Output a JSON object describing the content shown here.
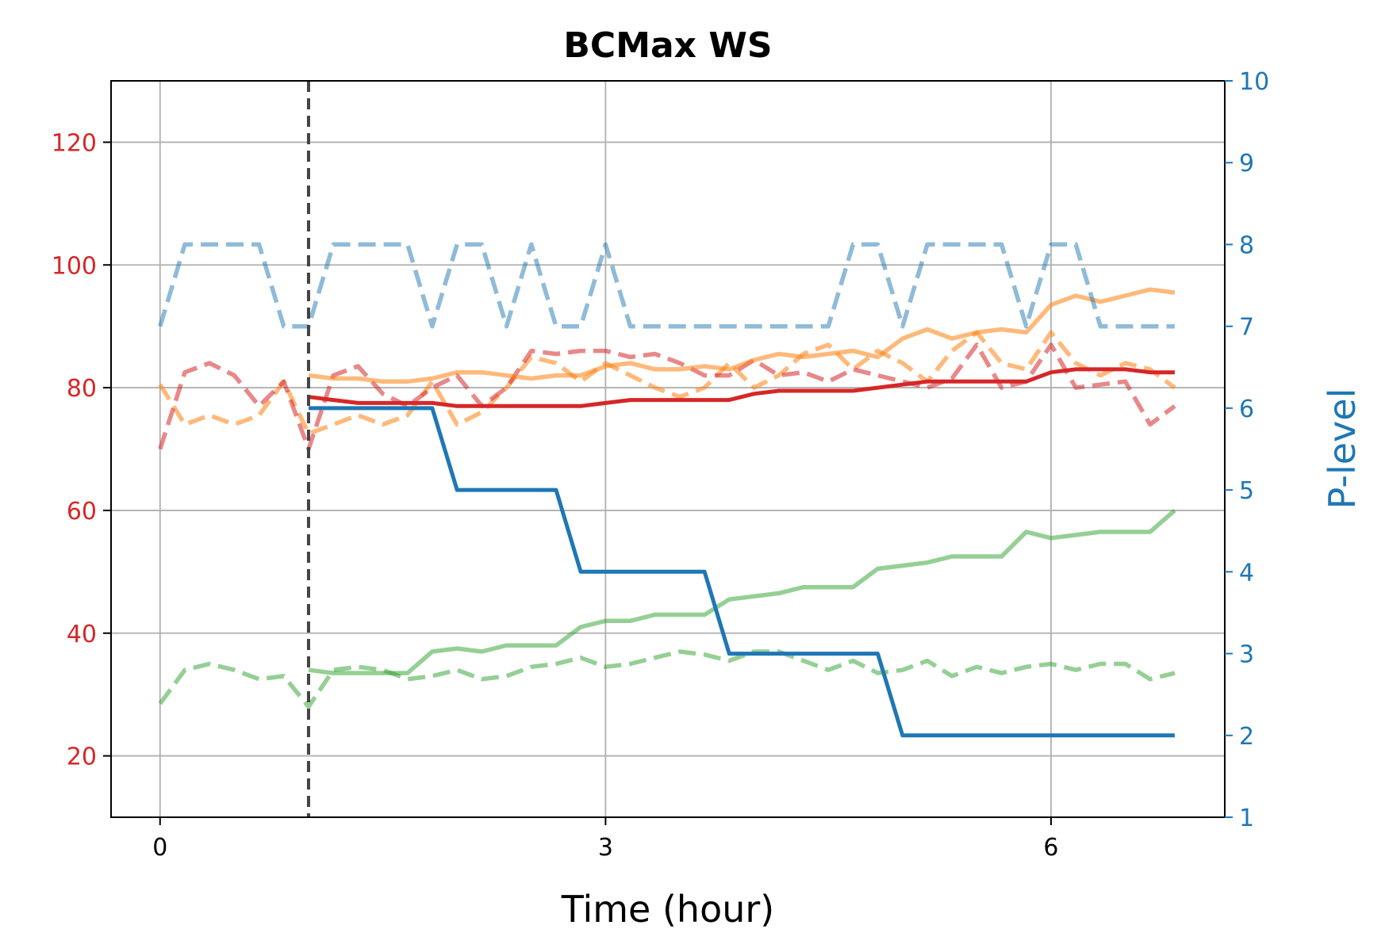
{
  "chart_data": {
    "type": "line",
    "title": "BCMax WS",
    "xlabel": "Time (hour)",
    "ylabel_left": "",
    "ylabel_right": "P-level",
    "xlim": [
      -0.33,
      7.17
    ],
    "ylim_left": [
      10,
      130
    ],
    "ylim_right": [
      1,
      10
    ],
    "x_ticks": [
      0,
      3,
      6
    ],
    "y_ticks_left": [
      20,
      40,
      60,
      80,
      100,
      120
    ],
    "y_ticks_right": [
      1,
      2,
      3,
      4,
      5,
      6,
      7,
      8,
      9,
      10
    ],
    "grid": true,
    "legend": "none",
    "colors": {
      "left_axis": "#d62728",
      "right_axis": "#1f77b4",
      "red": "#d62728",
      "orange": "#ff7f0e",
      "green": "#2ca02c",
      "blue": "#1f77b4",
      "vline": "#444444"
    },
    "vline_x": 1.0,
    "series": [
      {
        "axis": "left",
        "color": "#ff7f0e",
        "style": "dashed",
        "alpha": 0.55,
        "x": [
          0,
          0.167,
          0.333,
          0.5,
          0.667,
          0.833,
          1.0,
          1.167,
          1.333,
          1.5,
          1.667,
          1.833,
          2.0,
          2.167,
          2.333,
          2.5,
          2.667,
          2.833,
          3.0,
          3.167,
          3.333,
          3.5,
          3.667,
          3.833,
          4.0,
          4.167,
          4.333,
          4.5,
          4.667,
          4.833,
          5.0,
          5.167,
          5.333,
          5.5,
          5.667,
          5.833,
          6.0,
          6.167,
          6.333,
          6.5,
          6.667,
          6.833
        ],
        "y": [
          80.5,
          74,
          75.5,
          74,
          75.5,
          81,
          72.5,
          74,
          75.5,
          74,
          75.5,
          81,
          74,
          76,
          80,
          85,
          84,
          81,
          84,
          82,
          80,
          78.5,
          80,
          84,
          80,
          82,
          85.5,
          87,
          83,
          86,
          84,
          81,
          86,
          89,
          84,
          83,
          89,
          84,
          82,
          84,
          83,
          80
        ]
      },
      {
        "axis": "left",
        "color": "#d62728",
        "style": "dashed",
        "alpha": 0.55,
        "x": [
          0,
          0.167,
          0.333,
          0.5,
          0.667,
          0.833,
          1.0,
          1.167,
          1.333,
          1.5,
          1.667,
          1.833,
          2.0,
          2.167,
          2.333,
          2.5,
          2.667,
          2.833,
          3.0,
          3.167,
          3.333,
          3.5,
          3.667,
          3.833,
          4.0,
          4.167,
          4.333,
          4.5,
          4.667,
          4.833,
          5.0,
          5.167,
          5.333,
          5.5,
          5.667,
          5.833,
          6.0,
          6.167,
          6.333,
          6.5,
          6.667,
          6.833
        ],
        "y": [
          70,
          82.5,
          84,
          82,
          77,
          81,
          70,
          82,
          83.5,
          79,
          77,
          80,
          82,
          77,
          80,
          86,
          85.5,
          86,
          86,
          85,
          85.5,
          84,
          82,
          82,
          84.5,
          82,
          82.5,
          81,
          83,
          82,
          81,
          80,
          81.5,
          87,
          80,
          81,
          87,
          80,
          80.5,
          81,
          74,
          77
        ]
      },
      {
        "axis": "left",
        "color": "#ff7f0e",
        "style": "solid",
        "alpha": 0.55,
        "x": [
          1.0,
          1.167,
          1.333,
          1.5,
          1.667,
          1.833,
          2.0,
          2.167,
          2.333,
          2.5,
          2.667,
          2.833,
          3.0,
          3.167,
          3.333,
          3.5,
          3.667,
          3.833,
          4.0,
          4.167,
          4.333,
          4.5,
          4.667,
          4.833,
          5.0,
          5.167,
          5.333,
          5.5,
          5.667,
          5.833,
          6.0,
          6.167,
          6.333,
          6.5,
          6.667,
          6.833
        ],
        "y": [
          82,
          81.5,
          81.5,
          81,
          81,
          81.5,
          82.5,
          82.5,
          82,
          81.5,
          82,
          82,
          83.5,
          84,
          83,
          83,
          83.5,
          83,
          84.5,
          85.5,
          85,
          85.5,
          86,
          85,
          88,
          89.5,
          88,
          89,
          89.5,
          89,
          93.5,
          95,
          94,
          95,
          96,
          95.5
        ]
      },
      {
        "axis": "left",
        "color": "#d62728",
        "style": "solid",
        "alpha": 1.0,
        "x": [
          1.0,
          1.167,
          1.333,
          1.5,
          1.667,
          1.833,
          2.0,
          2.167,
          2.333,
          2.5,
          2.667,
          2.833,
          3.0,
          3.167,
          3.333,
          3.5,
          3.667,
          3.833,
          4.0,
          4.167,
          4.333,
          4.5,
          4.667,
          4.833,
          5.0,
          5.167,
          5.333,
          5.5,
          5.667,
          5.833,
          6.0,
          6.167,
          6.333,
          6.5,
          6.667,
          6.833
        ],
        "y": [
          78.5,
          78,
          77.5,
          77.5,
          77.5,
          77.5,
          77,
          77,
          77,
          77,
          77,
          77,
          77.5,
          78,
          78,
          78,
          78,
          78,
          79,
          79.5,
          79.5,
          79.5,
          79.5,
          80,
          80.5,
          81,
          81,
          81,
          81,
          81,
          82.5,
          83,
          83,
          83,
          82.5,
          82.5
        ]
      },
      {
        "axis": "left",
        "color": "#2ca02c",
        "style": "dashed",
        "alpha": 0.5,
        "x": [
          0,
          0.167,
          0.333,
          0.5,
          0.667,
          0.833,
          1.0,
          1.167,
          1.333,
          1.5,
          1.667,
          1.833,
          2.0,
          2.167,
          2.333,
          2.5,
          2.667,
          2.833,
          3.0,
          3.167,
          3.333,
          3.5,
          3.667,
          3.833,
          4.0,
          4.167,
          4.333,
          4.5,
          4.667,
          4.833,
          5.0,
          5.167,
          5.333,
          5.5,
          5.667,
          5.833,
          6.0,
          6.167,
          6.333,
          6.5,
          6.667,
          6.833
        ],
        "y": [
          28.5,
          34,
          35,
          34,
          32.5,
          33,
          28,
          34,
          34.5,
          34,
          32.5,
          33,
          34,
          32.5,
          33,
          34.5,
          35,
          36,
          34.5,
          35,
          36,
          37,
          36.5,
          35.5,
          37,
          37,
          35.5,
          34,
          35.5,
          33.5,
          34,
          35.5,
          33,
          34.5,
          33.5,
          34.5,
          35,
          34,
          35,
          35,
          32.5,
          33.5
        ]
      },
      {
        "axis": "left",
        "color": "#2ca02c",
        "style": "solid",
        "alpha": 0.5,
        "x": [
          1.0,
          1.167,
          1.333,
          1.5,
          1.667,
          1.833,
          2.0,
          2.167,
          2.333,
          2.5,
          2.667,
          2.833,
          3.0,
          3.167,
          3.333,
          3.5,
          3.667,
          3.833,
          4.0,
          4.167,
          4.333,
          4.5,
          4.667,
          4.833,
          5.0,
          5.167,
          5.333,
          5.5,
          5.667,
          5.833,
          6.0,
          6.167,
          6.333,
          6.5,
          6.667,
          6.833
        ],
        "y": [
          34,
          33.5,
          33.5,
          33.5,
          33.5,
          37,
          37.5,
          37,
          38,
          38,
          38,
          41,
          42,
          42,
          43,
          43,
          43,
          45.5,
          46,
          46.5,
          47.5,
          47.5,
          47.5,
          50.5,
          51,
          51.5,
          52.5,
          52.5,
          52.5,
          56.5,
          55.5,
          56,
          56.5,
          56.5,
          56.5,
          60
        ]
      },
      {
        "axis": "right",
        "color": "#1f77b4",
        "style": "dashed",
        "alpha": 0.5,
        "x": [
          0,
          0.167,
          0.333,
          0.5,
          0.667,
          0.833,
          1.0,
          1.167,
          1.333,
          1.5,
          1.667,
          1.833,
          2.0,
          2.167,
          2.333,
          2.5,
          2.667,
          2.833,
          3.0,
          3.167,
          3.333,
          3.5,
          3.667,
          3.833,
          4.0,
          4.167,
          4.333,
          4.5,
          4.667,
          4.833,
          5.0,
          5.167,
          5.333,
          5.5,
          5.667,
          5.833,
          6.0,
          6.167,
          6.333,
          6.5,
          6.667,
          6.833
        ],
        "y": [
          7,
          8,
          8,
          8,
          8,
          7,
          7,
          8,
          8,
          8,
          8,
          7,
          8,
          8,
          7,
          8,
          7,
          7,
          8,
          7,
          7,
          7,
          7,
          7,
          7,
          7,
          7,
          7,
          8,
          8,
          7,
          8,
          8,
          8,
          8,
          7,
          8,
          8,
          7,
          7,
          7,
          7
        ]
      },
      {
        "axis": "right",
        "color": "#1f77b4",
        "style": "solid",
        "alpha": 1.0,
        "x": [
          1.0,
          1.167,
          1.333,
          1.5,
          1.667,
          1.833,
          2.0,
          2.167,
          2.333,
          2.5,
          2.667,
          2.833,
          3.0,
          3.167,
          3.333,
          3.5,
          3.667,
          3.833,
          4.0,
          4.167,
          4.333,
          4.5,
          4.667,
          4.833,
          5.0,
          5.167,
          5.333,
          5.5,
          5.667,
          5.833,
          6.0,
          6.167,
          6.333,
          6.5,
          6.667,
          6.833
        ],
        "y": [
          6,
          6,
          6,
          6,
          6,
          6,
          5,
          5,
          5,
          5,
          5,
          4,
          4,
          4,
          4,
          4,
          4,
          3,
          3,
          3,
          3,
          3,
          3,
          3,
          2,
          2,
          2,
          2,
          2,
          2,
          2,
          2,
          2,
          2,
          2,
          2
        ]
      }
    ]
  }
}
